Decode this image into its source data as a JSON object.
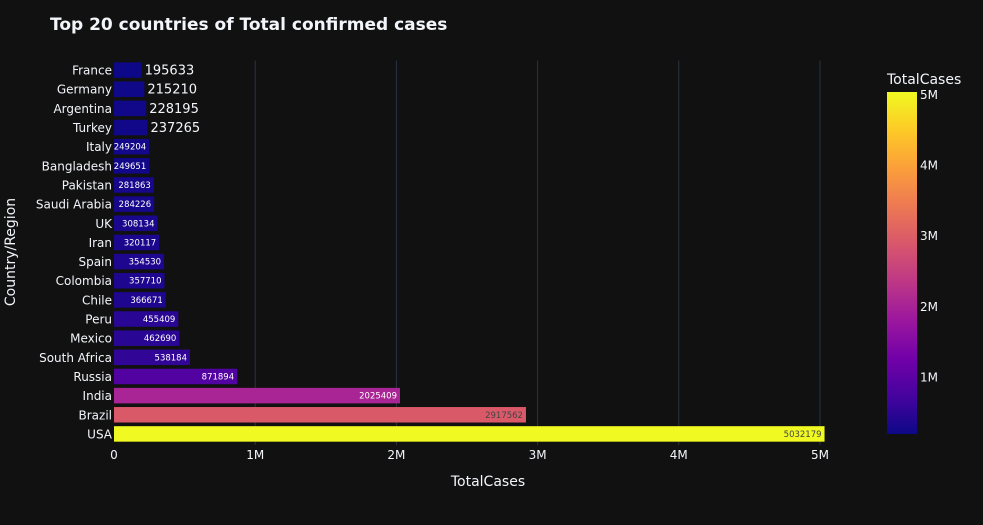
{
  "chart_data": {
    "type": "bar",
    "orientation": "horizontal",
    "title": "Top 20 countries of Total confirmed cases",
    "xlabel": "TotalCases",
    "ylabel": "Country/Region",
    "xlim": [
      0,
      5032179
    ],
    "x_ticks": [
      "0",
      "1M",
      "2M",
      "3M",
      "4M",
      "5M"
    ],
    "x_tick_values": [
      0,
      1000000,
      2000000,
      3000000,
      4000000,
      5000000
    ],
    "categories": [
      "France",
      "Germany",
      "Argentina",
      "Turkey",
      "Italy",
      "Bangladesh",
      "Pakistan",
      "Saudi Arabia",
      "UK",
      "Iran",
      "Spain",
      "Colombia",
      "Chile",
      "Peru",
      "Mexico",
      "South Africa",
      "Russia",
      "India",
      "Brazil",
      "USA"
    ],
    "values": [
      195633,
      215210,
      228195,
      237265,
      249204,
      249651,
      281863,
      284226,
      308134,
      320117,
      354530,
      357710,
      366671,
      455409,
      462690,
      538184,
      871894,
      2025409,
      2917562,
      5032179
    ],
    "labels": [
      "195633",
      "215210",
      "228195",
      "237265",
      "249204",
      "249651",
      "281863",
      "284226",
      "308134",
      "320117",
      "354530",
      "357710",
      "366671",
      "455409",
      "462690",
      "538184",
      "871894",
      "2025409",
      "2917562",
      "5032179"
    ],
    "colorbar": {
      "title": "TotalCases",
      "range": [
        195633,
        5032179
      ],
      "tick_labels": [
        "1M",
        "2M",
        "3M",
        "4M",
        "5M"
      ],
      "tick_values": [
        1000000,
        2000000,
        3000000,
        4000000,
        5000000
      ],
      "colorscale": [
        "#0d0887",
        "#46039f",
        "#7201a8",
        "#9c179e",
        "#bd3786",
        "#d8576b",
        "#ed7953",
        "#fb9f3a",
        "#fdca26",
        "#f0f921"
      ]
    },
    "grid": true,
    "legend": "none"
  }
}
